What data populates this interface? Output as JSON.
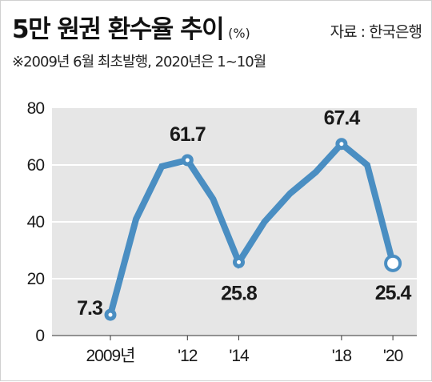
{
  "header": {
    "title": "5만 원권 환수율 추이",
    "unit": "(%)",
    "source": "자료 : 한국은행",
    "note": "※2009년 6월 최초발행, 2020년은 1~10월"
  },
  "colors": {
    "line": "#4a8ec2",
    "plot_bg": "#e6e6e6",
    "grid": "#ffffff",
    "marker_fill": "#ffffff",
    "text": "#1a1a1a"
  },
  "chart_data": {
    "type": "line",
    "title": "5만 원권 환수율 추이",
    "ylabel": "(%)",
    "xlabel": "",
    "ylim": [
      0,
      80
    ],
    "yticks": [
      "0",
      "20",
      "40",
      "60",
      "80"
    ],
    "x": [
      2009,
      2010,
      2011,
      2012,
      2013,
      2014,
      2015,
      2016,
      2017,
      2018,
      2019,
      2020
    ],
    "xtick_labels": [
      {
        "x": 2009,
        "label": "2009년"
      },
      {
        "x": 2012,
        "label": "'12"
      },
      {
        "x": 2014,
        "label": "'14"
      },
      {
        "x": 2018,
        "label": "'18"
      },
      {
        "x": 2020,
        "label": "'20"
      }
    ],
    "series": [
      {
        "values": [
          7.3,
          41.0,
          59.5,
          61.7,
          48.0,
          25.8,
          40.0,
          50.0,
          57.5,
          67.4,
          60.0,
          25.4
        ]
      }
    ],
    "annotations": [
      {
        "x": 2009,
        "y": 7.3,
        "label": "7.3"
      },
      {
        "x": 2012,
        "y": 61.7,
        "label": "61.7"
      },
      {
        "x": 2014,
        "y": 25.8,
        "label": "25.8"
      },
      {
        "x": 2018,
        "y": 67.4,
        "label": "67.4"
      },
      {
        "x": 2020,
        "y": 25.4,
        "label": "25.4"
      }
    ],
    "grid": true,
    "legend": "none"
  }
}
